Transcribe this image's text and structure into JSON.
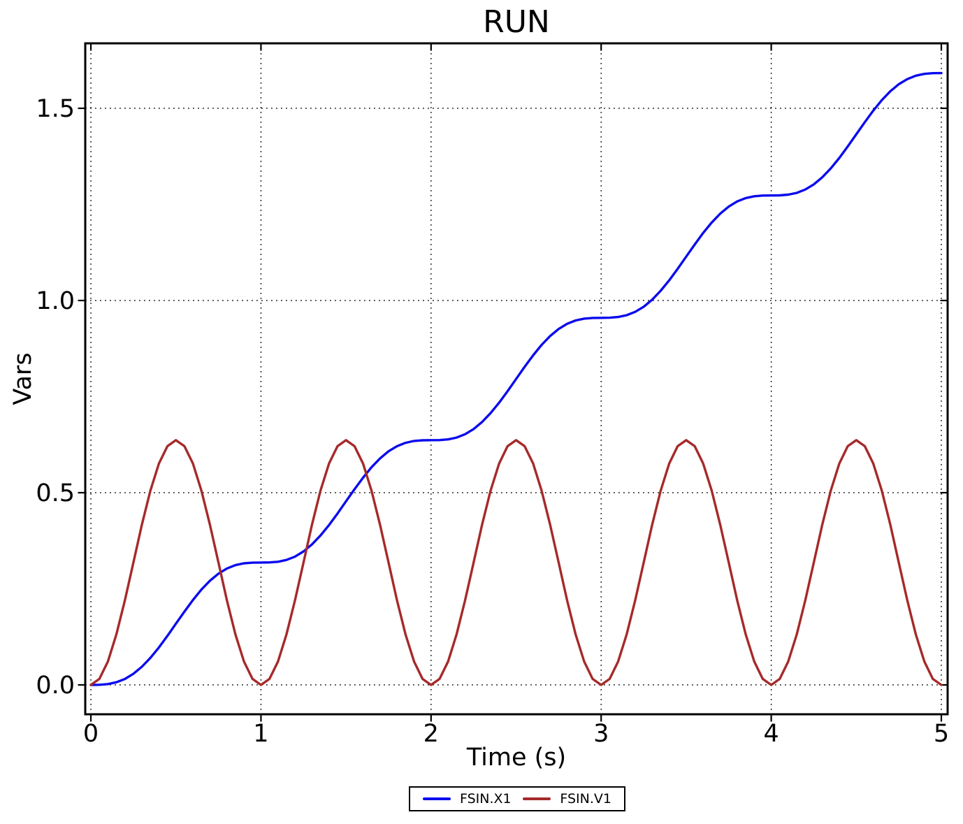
{
  "title": "RUN",
  "xlabel": "Time (s)",
  "ylabel": "Vars",
  "colors": {
    "background": "#ffffff",
    "axes": "#000000",
    "grid": "#000000",
    "series_fsin_x1": "#0b0bee",
    "series_fsin_v1": "#a52a2a"
  },
  "chart_data": {
    "type": "line",
    "title": "RUN",
    "xlabel": "Time (s)",
    "ylabel": "Vars",
    "grid": true,
    "grid_style": "dotted",
    "legend_position": "bottom-center",
    "xlim": [
      -0.033,
      5.037
    ],
    "ylim": [
      -0.0764,
      1.669
    ],
    "xticks": [
      0,
      1,
      2,
      3,
      4,
      5
    ],
    "yticks": [
      0.0,
      0.5,
      1.0,
      1.5
    ],
    "xtick_labels": [
      "0",
      "1",
      "2",
      "3",
      "4",
      "5"
    ],
    "ytick_labels": [
      "0.0",
      "0.5",
      "1.0",
      "1.5"
    ],
    "x": [
      0,
      0.05,
      0.1,
      0.15,
      0.2,
      0.25,
      0.3,
      0.35,
      0.4,
      0.45,
      0.5,
      0.55,
      0.6,
      0.65,
      0.7,
      0.75,
      0.8,
      0.85,
      0.9,
      0.95,
      1,
      1.05,
      1.1,
      1.15,
      1.2,
      1.25,
      1.3,
      1.35,
      1.4,
      1.45,
      1.5,
      1.55,
      1.6,
      1.65,
      1.7,
      1.75,
      1.8,
      1.85,
      1.9,
      1.95,
      2,
      2.05,
      2.1,
      2.15,
      2.2,
      2.25,
      2.3,
      2.35,
      2.4,
      2.45,
      2.5,
      2.55,
      2.6,
      2.65,
      2.7,
      2.75,
      2.8,
      2.85,
      2.9,
      2.95,
      3,
      3.05,
      3.1,
      3.15,
      3.2,
      3.25,
      3.3,
      3.35,
      3.4,
      3.45,
      3.5,
      3.55,
      3.6,
      3.65,
      3.7,
      3.75,
      3.8,
      3.85,
      3.9,
      3.95,
      4,
      4.05,
      4.1,
      4.15,
      4.2,
      4.25,
      4.3,
      4.35,
      4.4,
      4.45,
      4.5,
      4.55,
      4.6,
      4.65,
      4.7,
      4.75,
      4.8,
      4.85,
      4.9,
      4.95,
      5
    ],
    "series": [
      {
        "name": "FSIN.X1",
        "color": "#0b0bee",
        "values": [
          0,
          0.0003,
          0.0021,
          0.0068,
          0.0155,
          0.0289,
          0.0473,
          0.0704,
          0.0975,
          0.1276,
          0.1592,
          0.1907,
          0.2208,
          0.2479,
          0.271,
          0.2894,
          0.3028,
          0.3115,
          0.3163,
          0.318,
          0.3183,
          0.3186,
          0.3204,
          0.3251,
          0.3338,
          0.3472,
          0.3656,
          0.3887,
          0.4158,
          0.4459,
          0.4775,
          0.509,
          0.5391,
          0.5662,
          0.5893,
          0.6077,
          0.6211,
          0.6298,
          0.6346,
          0.6363,
          0.6366,
          0.6369,
          0.6387,
          0.6434,
          0.6521,
          0.6655,
          0.6839,
          0.707,
          0.7342,
          0.7642,
          0.7958,
          0.8273,
          0.8574,
          0.8845,
          0.9076,
          0.926,
          0.9394,
          0.9482,
          0.9529,
          0.9547,
          0.9549,
          0.9552,
          0.957,
          0.9617,
          0.9704,
          0.9838,
          1.0022,
          1.0254,
          1.0525,
          1.0825,
          1.1141,
          1.1456,
          1.1757,
          1.2028,
          1.2259,
          1.2443,
          1.2577,
          1.2665,
          1.2712,
          1.273,
          1.2732,
          1.2735,
          1.2753,
          1.28,
          1.2887,
          1.3021,
          1.3205,
          1.3437,
          1.3708,
          1.4008,
          1.4324,
          1.4639,
          1.494,
          1.5211,
          1.5442,
          1.5626,
          1.576,
          1.5848,
          1.5895,
          1.5913,
          1.5915
        ]
      },
      {
        "name": "FSIN.V1",
        "color": "#a52a2a",
        "values": [
          0,
          0.0156,
          0.0608,
          0.1312,
          0.2199,
          0.3183,
          0.4167,
          0.5054,
          0.5758,
          0.621,
          0.6366,
          0.621,
          0.5758,
          0.5054,
          0.4167,
          0.3183,
          0.2199,
          0.1312,
          0.0608,
          0.0156,
          0,
          0.0156,
          0.0608,
          0.1312,
          0.2199,
          0.3183,
          0.4167,
          0.5054,
          0.5758,
          0.621,
          0.6366,
          0.621,
          0.5758,
          0.5054,
          0.4167,
          0.3183,
          0.2199,
          0.1312,
          0.0608,
          0.0156,
          0,
          0.0156,
          0.0608,
          0.1312,
          0.2199,
          0.3183,
          0.4167,
          0.5054,
          0.5758,
          0.621,
          0.6366,
          0.621,
          0.5758,
          0.5054,
          0.4167,
          0.3183,
          0.2199,
          0.1312,
          0.0608,
          0.0156,
          0,
          0.0156,
          0.0608,
          0.1312,
          0.2199,
          0.3183,
          0.4167,
          0.5054,
          0.5758,
          0.621,
          0.6366,
          0.621,
          0.5758,
          0.5054,
          0.4167,
          0.3183,
          0.2199,
          0.1312,
          0.0608,
          0.0156,
          0,
          0.0156,
          0.0608,
          0.1312,
          0.2199,
          0.3183,
          0.4167,
          0.5054,
          0.5758,
          0.621,
          0.6366,
          0.621,
          0.5758,
          0.5054,
          0.4167,
          0.3183,
          0.2199,
          0.1312,
          0.0608,
          0.0156,
          0
        ]
      }
    ]
  },
  "legend": {
    "entries": [
      {
        "label": "FSIN.X1",
        "color": "#0b0bee"
      },
      {
        "label": "FSIN.V1",
        "color": "#a52a2a"
      }
    ]
  }
}
